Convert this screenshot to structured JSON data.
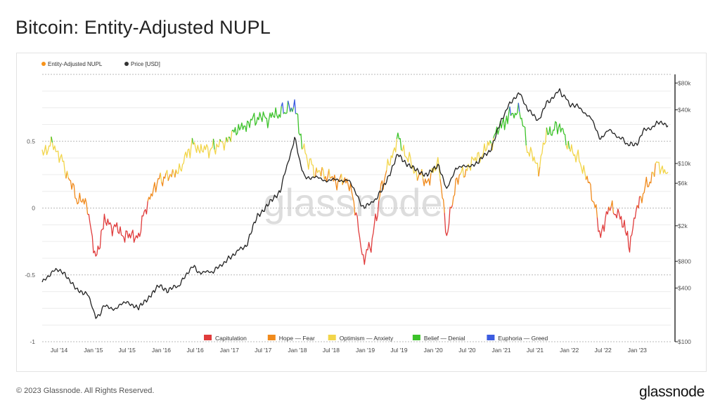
{
  "page": {
    "title": "Bitcoin: Entity-Adjusted NUPL",
    "copyright": "© 2023 Glassnode. All Rights Reserved.",
    "brand": "glassnode",
    "watermark": "glassnode"
  },
  "chart_data": {
    "type": "line",
    "legend_top": [
      {
        "label": "Entity-Adjusted NUPL",
        "color": "#f7931a"
      },
      {
        "label": "Price [USD]",
        "color": "#333333"
      }
    ],
    "legend_bottom": [
      {
        "label": "Capitulation",
        "color": "#e03c3c"
      },
      {
        "label": "Hope — Fear",
        "color": "#f08a1c"
      },
      {
        "label": "Optimism — Anxiety",
        "color": "#f2d54a"
      },
      {
        "label": "Belief — Denial",
        "color": "#3cc22a"
      },
      {
        "label": "Euphoria — Greed",
        "color": "#3c5ce0"
      }
    ],
    "x_ticks": [
      "Jul '14",
      "Jan '15",
      "Jul '15",
      "Jan '16",
      "Jul '16",
      "Jan '17",
      "Jul '17",
      "Jan '18",
      "Jul '18",
      "Jan '19",
      "Jul '19",
      "Jan '20",
      "Jul '20",
      "Jan '21",
      "Jul '21",
      "Jan '22",
      "Jul '22",
      "Jan '23"
    ],
    "x_range": [
      "2014-04-01",
      "2023-06-30"
    ],
    "y_left": {
      "range": [
        -1,
        1
      ],
      "ticks": [
        "0.5",
        "0",
        "-0.5",
        "-1"
      ],
      "tick_values": [
        0.5,
        0,
        -0.5,
        -1
      ]
    },
    "y_right": {
      "scale": "log",
      "range": [
        100,
        100000
      ],
      "ticks": [
        "$80k",
        "$40k",
        "$10k",
        "$6k",
        "$2k",
        "$800",
        "$400",
        "$100"
      ],
      "tick_values": [
        80000,
        40000,
        10000,
        6000,
        2000,
        800,
        400,
        100
      ]
    },
    "zones": [
      {
        "name": "Capitulation",
        "from": -1,
        "to": 0
      },
      {
        "name": "Hope — Fear",
        "from": 0,
        "to": 0.25
      },
      {
        "name": "Optimism — Anxiety",
        "from": 0.25,
        "to": 0.5
      },
      {
        "name": "Belief — Denial",
        "from": 0.5,
        "to": 0.75
      },
      {
        "name": "Euphoria — Greed",
        "from": 0.75,
        "to": 1
      }
    ],
    "series": [
      {
        "name": "Entity-Adjusted NUPL",
        "x": [
          "2014-04-01",
          "2014-06-01",
          "2014-08-01",
          "2014-10-01",
          "2014-12-01",
          "2015-01-14",
          "2015-03-01",
          "2015-05-01",
          "2015-07-01",
          "2015-09-01",
          "2015-11-01",
          "2015-12-15",
          "2016-02-01",
          "2016-04-01",
          "2016-06-15",
          "2016-08-01",
          "2016-10-01",
          "2016-12-15",
          "2017-02-01",
          "2017-04-01",
          "2017-06-01",
          "2017-08-01",
          "2017-10-01",
          "2017-12-17",
          "2018-02-06",
          "2018-04-01",
          "2018-06-01",
          "2018-08-01",
          "2018-10-01",
          "2018-11-25",
          "2018-12-15",
          "2019-02-01",
          "2019-04-01",
          "2019-06-25",
          "2019-08-01",
          "2019-10-01",
          "2019-12-01",
          "2020-02-01",
          "2020-03-13",
          "2020-05-01",
          "2020-07-01",
          "2020-09-01",
          "2020-11-01",
          "2021-01-01",
          "2021-02-15",
          "2021-04-14",
          "2021-05-20",
          "2021-07-20",
          "2021-09-01",
          "2021-11-10",
          "2022-01-01",
          "2022-03-01",
          "2022-05-01",
          "2022-06-18",
          "2022-08-01",
          "2022-10-01",
          "2022-11-21",
          "2023-01-01",
          "2023-02-01",
          "2023-03-15",
          "2023-04-15",
          "2023-06-15"
        ],
        "values": [
          0.42,
          0.48,
          0.3,
          0.08,
          0.02,
          -0.38,
          -0.1,
          -0.15,
          -0.22,
          -0.2,
          0.1,
          0.2,
          0.24,
          0.27,
          0.48,
          0.43,
          0.45,
          0.5,
          0.58,
          0.62,
          0.68,
          0.67,
          0.72,
          0.76,
          0.42,
          0.28,
          0.25,
          0.2,
          0.21,
          -0.12,
          -0.38,
          -0.28,
          0.18,
          0.52,
          0.42,
          0.26,
          0.2,
          0.33,
          -0.22,
          0.2,
          0.3,
          0.38,
          0.48,
          0.62,
          0.7,
          0.72,
          0.45,
          0.3,
          0.55,
          0.62,
          0.45,
          0.35,
          0.12,
          -0.2,
          0.0,
          -0.05,
          -0.28,
          0.02,
          0.12,
          0.22,
          0.32,
          0.27
        ]
      },
      {
        "name": "Price [USD]",
        "x": [
          "2014-04-01",
          "2014-06-01",
          "2014-08-01",
          "2014-10-01",
          "2014-12-01",
          "2015-01-14",
          "2015-03-01",
          "2015-05-01",
          "2015-07-01",
          "2015-09-01",
          "2015-11-01",
          "2015-12-15",
          "2016-02-01",
          "2016-04-01",
          "2016-06-15",
          "2016-08-01",
          "2016-10-01",
          "2016-12-15",
          "2017-02-01",
          "2017-04-01",
          "2017-06-01",
          "2017-08-01",
          "2017-10-01",
          "2017-12-17",
          "2018-02-06",
          "2018-04-01",
          "2018-06-01",
          "2018-08-01",
          "2018-10-01",
          "2018-11-25",
          "2018-12-15",
          "2019-02-01",
          "2019-04-01",
          "2019-06-25",
          "2019-08-01",
          "2019-10-01",
          "2019-12-01",
          "2020-02-01",
          "2020-03-13",
          "2020-05-01",
          "2020-07-01",
          "2020-09-01",
          "2020-11-01",
          "2021-01-01",
          "2021-02-15",
          "2021-04-14",
          "2021-05-20",
          "2021-07-20",
          "2021-09-01",
          "2021-11-10",
          "2022-01-01",
          "2022-03-01",
          "2022-05-01",
          "2022-06-18",
          "2022-08-01",
          "2022-10-01",
          "2022-11-21",
          "2023-01-01",
          "2023-02-01",
          "2023-03-15",
          "2023-04-15",
          "2023-06-15"
        ],
        "values": [
          460,
          640,
          590,
          380,
          350,
          180,
          250,
          235,
          285,
          235,
          330,
          420,
          380,
          420,
          700,
          590,
          610,
          800,
          1000,
          1200,
          2600,
          3500,
          5000,
          19000,
          7000,
          7000,
          6500,
          6500,
          6500,
          4200,
          3300,
          3500,
          5000,
          12500,
          10500,
          8300,
          7500,
          9500,
          5000,
          9000,
          9200,
          10500,
          14000,
          30000,
          48000,
          62000,
          40000,
          31000,
          47000,
          66000,
          47000,
          42000,
          31000,
          19000,
          23500,
          19500,
          16000,
          16800,
          23000,
          25000,
          29000,
          26500
        ]
      }
    ]
  }
}
